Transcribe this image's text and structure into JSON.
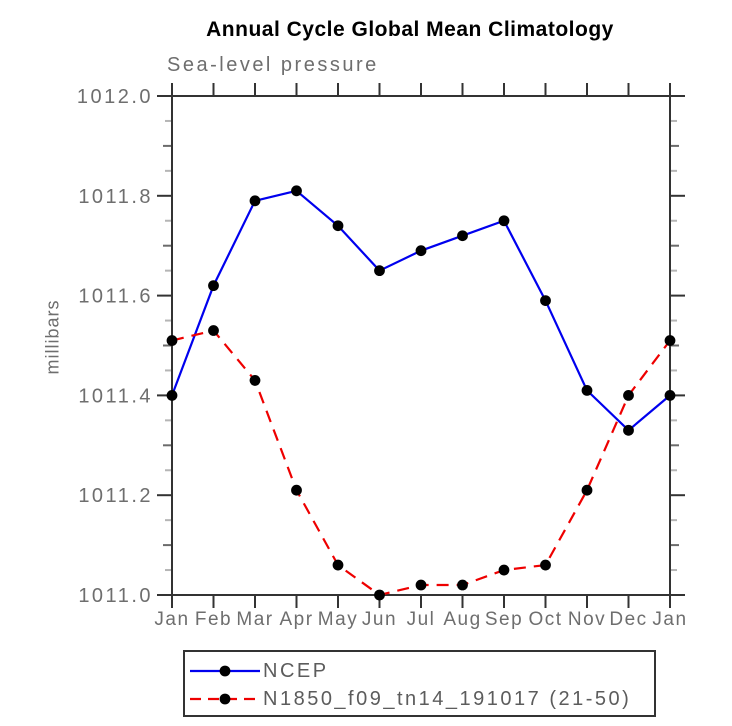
{
  "chart_data": {
    "type": "line",
    "title": "Annual Cycle Global Mean Climatology",
    "subtitle": "Sea-level pressure",
    "ylabel": "millibars",
    "xlabel": "",
    "categories": [
      "Jan",
      "Feb",
      "Mar",
      "Apr",
      "May",
      "Jun",
      "Jul",
      "Aug",
      "Sep",
      "Oct",
      "Nov",
      "Dec",
      "Jan"
    ],
    "ylim": [
      1011.0,
      1012.0
    ],
    "y_major_step": 0.2,
    "y_minor_step": 0.05,
    "y_tick_labels": [
      "1012.0",
      "1011.8",
      "1011.6",
      "1011.4",
      "1011.2",
      "1011.0"
    ],
    "grid": false,
    "legend_position": "bottom",
    "series": [
      {
        "name": "NCEP",
        "color": "#0000ee",
        "line_style": "solid",
        "marker": "filled-circle",
        "marker_color": "#000000",
        "values": [
          1011.4,
          1011.62,
          1011.79,
          1011.81,
          1011.74,
          1011.65,
          1011.69,
          1011.72,
          1011.75,
          1011.59,
          1011.41,
          1011.33,
          1011.4
        ]
      },
      {
        "name": "N1850_f09_tn14_191017 (21-50)",
        "color": "#ee0000",
        "line_style": "dashed",
        "marker": "filled-circle",
        "marker_color": "#000000",
        "values": [
          1011.51,
          1011.53,
          1011.43,
          1011.21,
          1011.06,
          1011.0,
          1011.02,
          1011.02,
          1011.05,
          1011.06,
          1011.21,
          1011.4,
          1011.51
        ]
      }
    ]
  }
}
